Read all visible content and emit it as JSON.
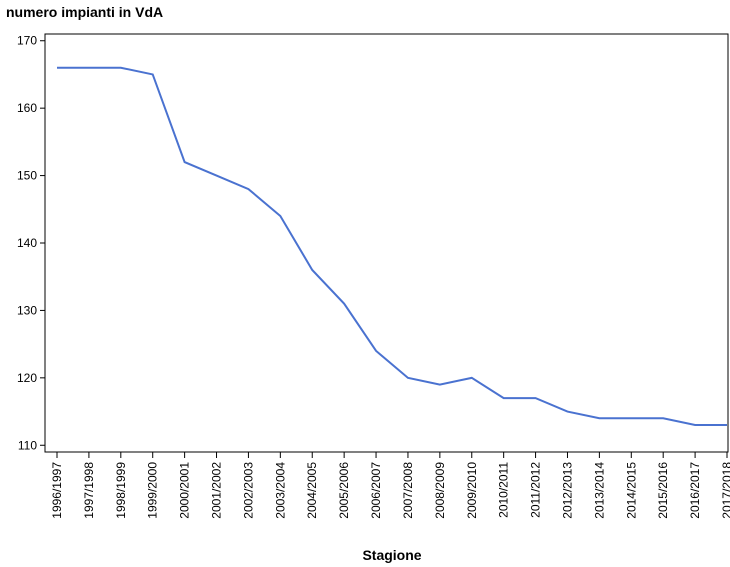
{
  "chart_data": {
    "type": "line",
    "title": "numero impianti in VdA",
    "x_label": "Stagione",
    "categories": [
      "1996/1997",
      "1997/1998",
      "1998/1999",
      "1999/2000",
      "2000/2001",
      "2001/2002",
      "2002/2003",
      "2003/2004",
      "2004/2005",
      "2005/2006",
      "2006/2007",
      "2007/2008",
      "2008/2009",
      "2009/2010",
      "2010/2011",
      "2011/2012",
      "2012/2013",
      "2013/2014",
      "2014/2015",
      "2015/2016",
      "2016/2017",
      "2017/2018"
    ],
    "series": [
      {
        "name": "numero impianti",
        "color": "#4a72d0",
        "values": [
          166,
          166,
          166,
          165,
          152,
          150,
          148,
          144,
          136,
          131,
          124,
          120,
          119,
          120,
          117,
          117,
          115,
          114,
          114,
          114,
          113,
          113
        ]
      }
    ],
    "ylim": [
      109,
      171
    ],
    "yticks": [
      110,
      120,
      130,
      140,
      150,
      160,
      170
    ],
    "grid": false
  }
}
